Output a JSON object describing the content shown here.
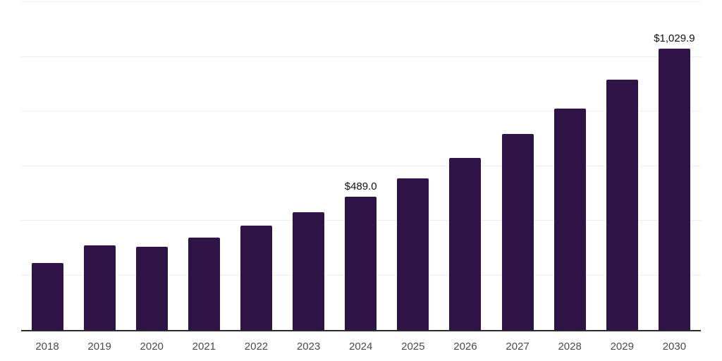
{
  "chart": {
    "background_color": "#ffffff",
    "bar_color": "#2f1347",
    "axis_color": "#2b2b2b",
    "grid_color": "#ededed",
    "tick_label_color": "#4a4a4a",
    "value_label_color": "#111111"
  },
  "chart_data": {
    "type": "bar",
    "title": "",
    "xlabel": "",
    "ylabel": "",
    "categories": [
      "2018",
      "2019",
      "2020",
      "2021",
      "2022",
      "2023",
      "2024",
      "2025",
      "2026",
      "2027",
      "2028",
      "2029",
      "2030"
    ],
    "values": [
      245,
      310,
      305,
      337,
      381,
      430,
      489.0,
      554,
      631,
      718,
      811,
      917,
      1029.9
    ],
    "value_labels": [
      "",
      "",
      "",
      "",
      "",
      "",
      "$489.0",
      "",
      "",
      "",
      "",
      "",
      "$1,029.9"
    ],
    "ylim": [
      0,
      1200
    ],
    "gridline_step": 200,
    "grid": true,
    "legend_position": "none",
    "y_axis_tick_labels_visible": false,
    "currency_prefix": "$"
  }
}
